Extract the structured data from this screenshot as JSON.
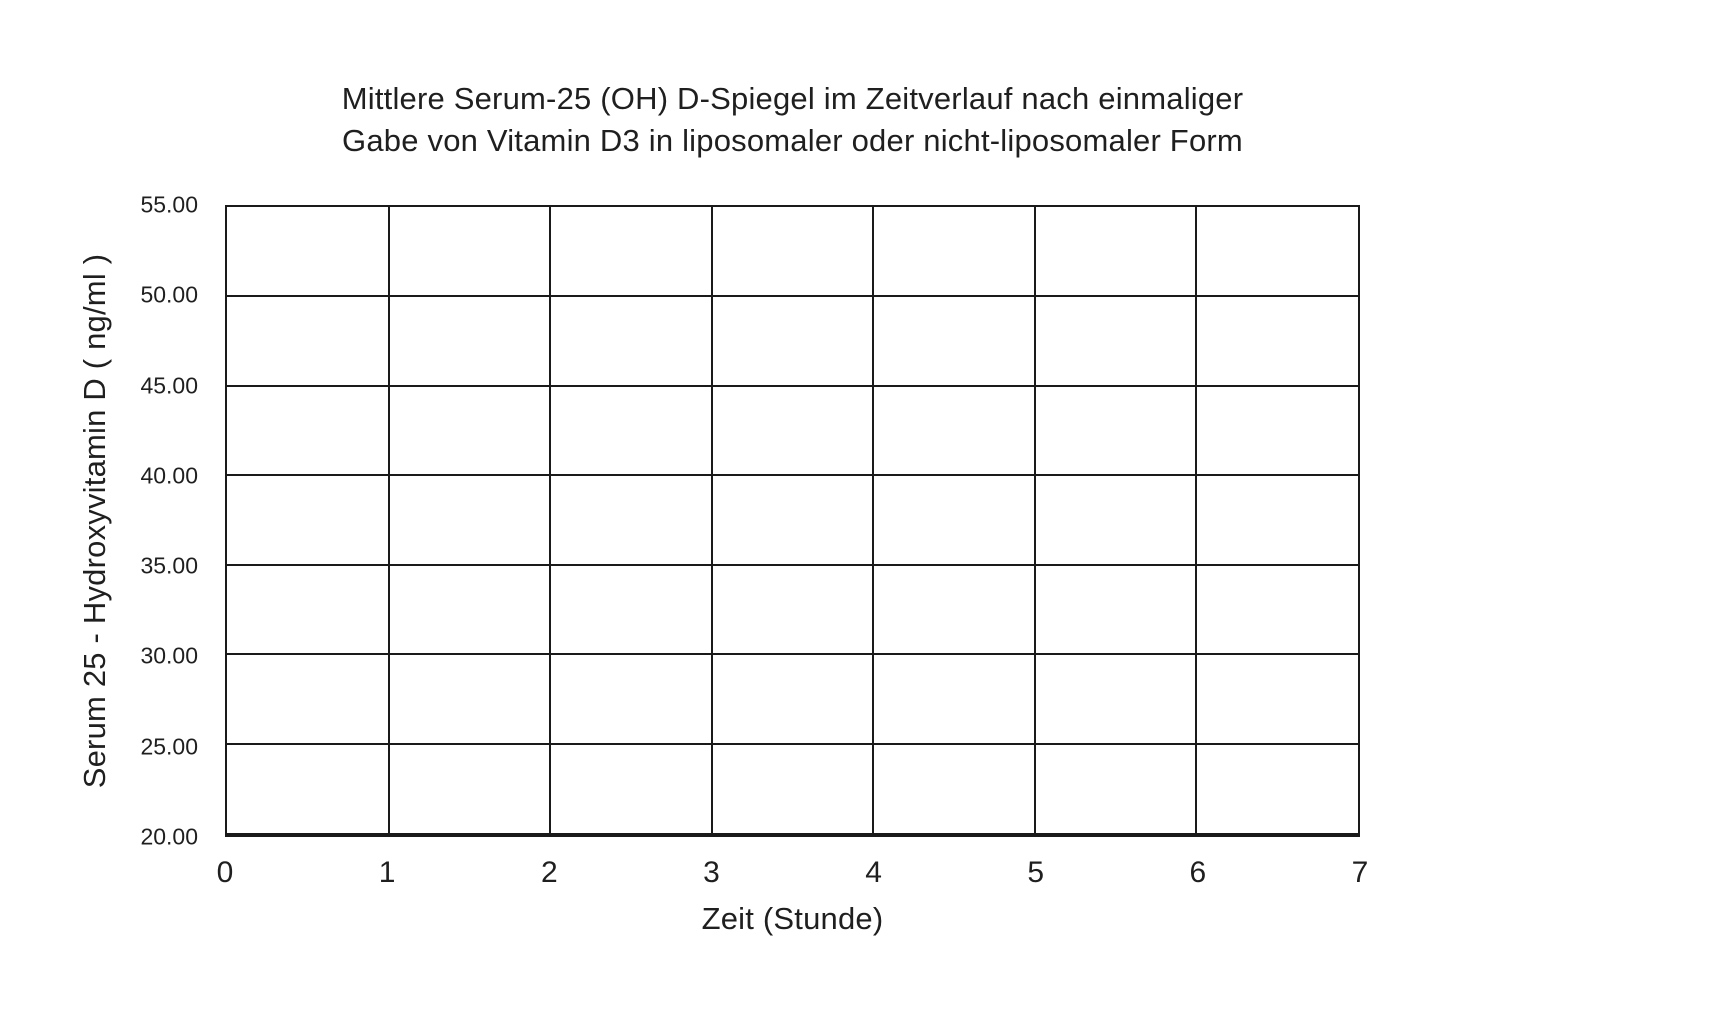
{
  "page": {
    "background": "#ffffff"
  },
  "colors": {
    "line": "#1a1a1a",
    "text": "#1f1f1f",
    "background": "#ffffff"
  },
  "chart_data": {
    "type": "line",
    "title": "Mittlere Serum-25 (OH) D-Spiegel im Zeitverlauf nach einmaliger Gabe von Vitamin D3 in liposomaler oder nicht-liposomaler Form",
    "title_lines": [
      "Mittlere Serum-25 (OH) D-Spiegel im Zeitverlauf nach einmaliger",
      "Gabe von Vitamin D3 in liposomaler oder nicht-liposomaler Form"
    ],
    "xlabel": "Zeit (Stunde)",
    "ylabel": "Serum 25 - Hydroxyvitamin D ( ng/ml )",
    "x_ticks": [
      "0",
      "1",
      "2",
      "3",
      "4",
      "5",
      "6",
      "7"
    ],
    "y_ticks": [
      "55.00",
      "50.00",
      "45.00",
      "40.00",
      "35.00",
      "30.00",
      "25.00",
      "20.00"
    ],
    "xlim": [
      0,
      7
    ],
    "ylim": [
      20,
      55
    ],
    "grid": true,
    "legend": "none",
    "series": []
  }
}
